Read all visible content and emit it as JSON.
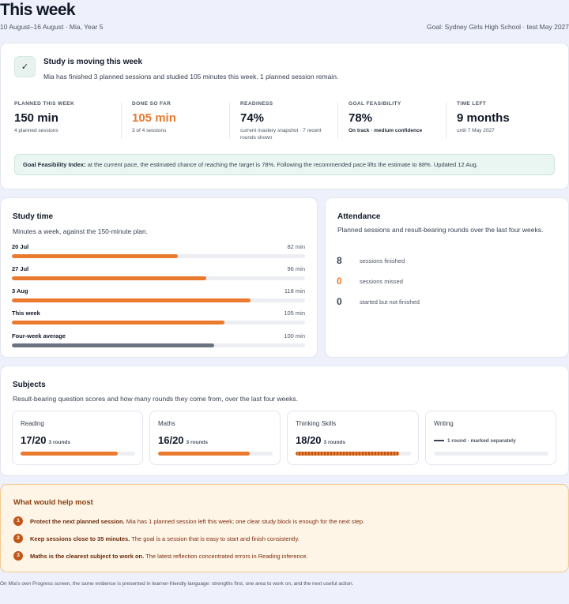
{
  "header": {
    "title": "This week",
    "subtitle": "10 August–16 August · Mia, Year 5",
    "goal": "Goal: Sydney Girls High School · test May 2027"
  },
  "status": {
    "icon": "check-icon",
    "title": "Study is moving this week",
    "text": "Mia has finished 3 planned sessions and studied 105 minutes this week. 1 planned session remain."
  },
  "metrics": [
    {
      "label": "PLANNED THIS WEEK",
      "value": "150 min",
      "note": "4 planned sessions"
    },
    {
      "label": "DONE SO FAR",
      "value": "105 min",
      "note": "3 of 4 sessions"
    },
    {
      "label": "READINESS",
      "value": "74%",
      "note": "current mastery snapshot · 7 recent rounds shown"
    },
    {
      "label": "GOAL FEASIBILITY",
      "value": "78%",
      "note": "On track · medium confidence"
    },
    {
      "label": "TIME LEFT",
      "value": "9 months",
      "note": "until 7 May 2027"
    }
  ],
  "gfi": {
    "label": "Goal Feasibility Index:",
    "text": "at the current pace, the estimated chance of reaching the target is 78%. Following the recommended pace lifts the estimate to 88%. Updated 12 Aug."
  },
  "study_time": {
    "title": "Study time",
    "subtitle": "Minutes a week, against the 150-minute plan.",
    "weeks": [
      {
        "label": "20 Jul",
        "value_text": "82 min",
        "minutes": 82
      },
      {
        "label": "27 Jul",
        "value_text": "96 min",
        "minutes": 96
      },
      {
        "label": "3 Aug",
        "value_text": "118 min",
        "minutes": 118
      },
      {
        "label": "This week",
        "value_text": "105 min",
        "minutes": 105
      },
      {
        "label": "Four-week average",
        "value_text": "100 min",
        "minutes": 100
      }
    ]
  },
  "attendance": {
    "title": "Attendance",
    "subtitle": "Planned sessions and result-bearing rounds over the last four weeks.",
    "rows": [
      {
        "num": "8",
        "label": "sessions finished"
      },
      {
        "num": "0",
        "label": "sessions missed"
      },
      {
        "num": "0",
        "label": "started but not finished"
      }
    ]
  },
  "subjects": {
    "title": "Subjects",
    "subtitle": "Result-bearing question scores and how many rounds they come from, over the last four weeks.",
    "items": [
      {
        "name": "Reading",
        "score": "17/20",
        "rounds": "3 rounds",
        "fraction": 0.85
      },
      {
        "name": "Maths",
        "score": "16/20",
        "rounds": "3 rounds",
        "fraction": 0.8
      },
      {
        "name": "Thinking Skills",
        "score": "18/20",
        "rounds": "3 rounds",
        "fraction": 0.9
      },
      {
        "name": "Writing",
        "note": "1 round · marked separately"
      }
    ]
  },
  "help": {
    "title": "What would help most",
    "items": [
      {
        "num": "1",
        "bold": "Protect the next planned session.",
        "text": "Mia has 1 planned session left this week; one clear study block is enough for the next step."
      },
      {
        "num": "2",
        "bold": "Keep sessions close to 35 minutes.",
        "text": "The goal is a session that is easy to start and finish consistently."
      },
      {
        "num": "3",
        "bold": "Maths is the clearest subject to work on.",
        "text": "The latest reflection concentrated errors in Reading inference."
      }
    ]
  },
  "footnote": "On Mia's own Progress screen, the same evidence is presented in learner-friendly language: strengths first, one area to work on, and the next useful action."
}
